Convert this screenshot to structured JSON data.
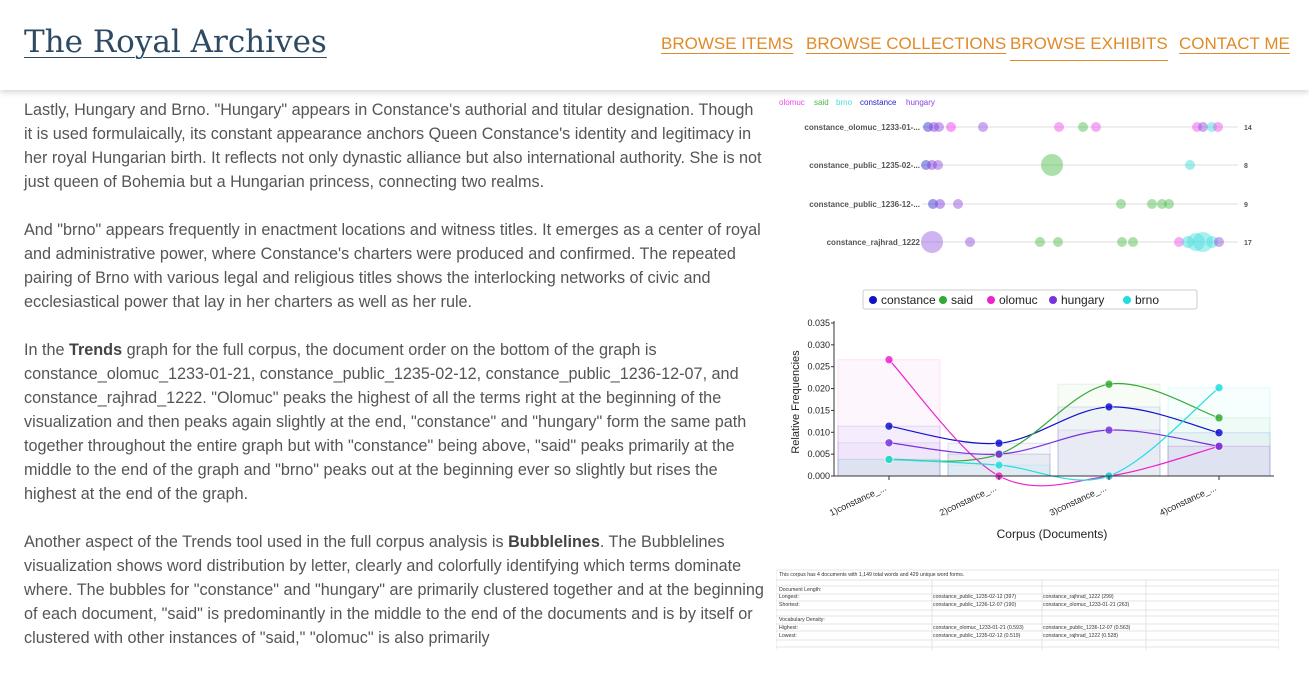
{
  "header": {
    "site_title": "The Royal Archives",
    "nav": [
      {
        "label": "BROWSE ITEMS",
        "active": false
      },
      {
        "label": "BROWSE COLLECTIONS",
        "active": false
      },
      {
        "label": "BROWSE EXHIBITS",
        "active": true
      },
      {
        "label": "CONTACT ME",
        "active": false
      }
    ],
    "link_color": "#e08a2a"
  },
  "article": {
    "p1": "Lastly, Hungary and Brno. \"Hungary\" appears in Constance's authorial and titular designation. Though it is used formulaically, its constant appearance anchors Queen Constance's identity and legitimacy in her royal Hungarian birth. It reflects not only dynastic alliance but also international authority. She is not just queen of Bohemia but a Hungarian princess, connecting two realms.",
    "p2": "And \"brno\" appears frequently in enactment locations and witness titles. It emerges as a center of royal and administrative power, where Constance's charters were produced and confirmed. The repeated pairing of Brno with various legal and religious titles shows the interlocking networks of civic and ecclesiastical power that lay in her charters as well as her rule.",
    "p3_pre": "In the ",
    "p3_bold": "Trends",
    "p3_post": " graph for the full corpus, the document order on the bottom of the graph is constance_olomuc_1233-01-21, constance_public_1235-02-12, constance_public_1236-12-07, and constance_rajhrad_1222. \"Olomuc\" peaks the highest of all the terms right at the beginning of the visualization and then peaks again slightly at the end, \"constance\" and \"hungary\" form the same path together throughout the entire graph but with \"constance\" being above, \"said\" peaks primarily at the middle to the end of the graph and \"brno\" peaks out at the beginning ever so slightly but rises the highest at the end of the graph.",
    "p4_pre": "Another aspect of the Trends tool used in the full corpus analysis is ",
    "p4_bold": "Bubblelines",
    "p4_post": ". The Bubblelines visualization shows word distribution by letter, clearly and colorfully identifying which terms dominate where. The bubbles for \"constance\" and \"hungary\" are primarily clustered together and at the beginning of each document, \"said\" is predominantly in the middle to the end of the documents and is by itself or clustered with other instances of \"said,\" \"olomuc\" is also primarily"
  },
  "bubblelines": {
    "legend": [
      {
        "term": "olomuc",
        "color": "#ee44ee"
      },
      {
        "term": "said",
        "color": "#44bb44"
      },
      {
        "term": "brno",
        "color": "#44dddd"
      },
      {
        "term": "constance",
        "color": "#2222cc"
      },
      {
        "term": "hungary",
        "color": "#8844dd"
      }
    ],
    "rows": [
      {
        "label": "constance_olomuc_1233-01-...",
        "count": "14"
      },
      {
        "label": "constance_public_1235-02-...",
        "count": "8"
      },
      {
        "label": "constance_public_1236-12-...",
        "count": "9"
      },
      {
        "label": "constance_rajhrad_1222",
        "count": "17"
      }
    ]
  },
  "chart_data": {
    "type": "line",
    "title": "",
    "categories": [
      "1)constance_...",
      "2)constance_...",
      "3)constance_...",
      "4)constance_..."
    ],
    "xlabel": "Corpus (Documents)",
    "ylabel": "Relative Frequencies",
    "ylim": [
      0,
      0.035
    ],
    "yticks": [
      "0.000",
      "0.005",
      "0.010",
      "0.015",
      "0.020",
      "0.025",
      "0.030",
      "0.035"
    ],
    "legend_position": "top",
    "series": [
      {
        "name": "constance",
        "color": "#1111cc",
        "values": [
          0.0114,
          0.0075,
          0.0158,
          0.0099
        ]
      },
      {
        "name": "said",
        "color": "#33aa33",
        "values": [
          0.0038,
          0.005,
          0.021,
          0.0133
        ]
      },
      {
        "name": "olomuc",
        "color": "#ee22cc",
        "values": [
          0.0266,
          0.0,
          0.0,
          0.0068
        ]
      },
      {
        "name": "hungary",
        "color": "#7733dd",
        "values": [
          0.0076,
          0.005,
          0.0105,
          0.0068
        ]
      },
      {
        "name": "brno",
        "color": "#22dddd",
        "values": [
          0.0038,
          0.0025,
          0.0,
          0.0202
        ]
      }
    ]
  },
  "stats": {
    "summary": "This corpus has 4 documents with 1,149 total words and 429 unique word forms.",
    "length_heading": "Document Length:",
    "longest_label": "Longest:",
    "longest_1": "constance_public_1235-02-12 (397)",
    "longest_2": "constance_rajhrad_1222 (299)",
    "shortest_label": "Shortest:",
    "shortest_1": "constance_public_1236-12-07 (190)",
    "shortest_2": "constance_olomuc_1233-01-21 (263)",
    "density_heading": "Vocabulary Density:",
    "highest_label": "Highest:",
    "highest_1": "constance_olomuc_1233-01-21 (0.593)",
    "highest_2": "constance_public_1236-12-07 (0.563)",
    "lowest_label": "Lowest:",
    "lowest_1": "constance_public_1235-02-12 (0.519)",
    "lowest_2": "constance_rajhrad_1222 (0.528)"
  }
}
